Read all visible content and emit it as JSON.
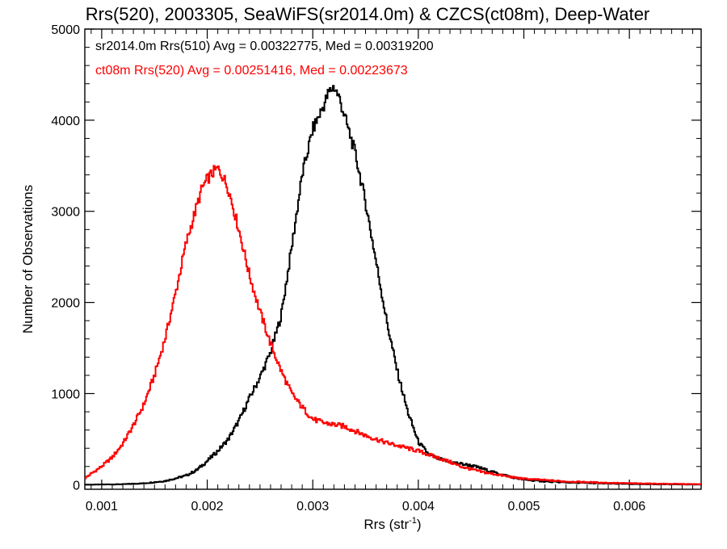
{
  "chart_data": {
    "type": "line",
    "title": "Rrs(520), 2003305, SeaWiFS(sr2014.0m) & CZCS(ct08m), Deep-Water",
    "xlabel": "Rrs (str",
    "xlabel_sup": "-1",
    "xlabel_close": ")",
    "ylabel": "Number of Observations",
    "xlim": [
      0.00084,
      0.00668
    ],
    "ylim": [
      -50,
      5000
    ],
    "xticks": [
      0.001,
      0.002,
      0.003,
      0.004,
      0.005,
      0.006
    ],
    "xtick_labels": [
      "0.001",
      "0.002",
      "0.003",
      "0.004",
      "0.005",
      "0.006"
    ],
    "yticks": [
      0,
      1000,
      2000,
      3000,
      4000,
      5000
    ],
    "ytick_labels": [
      "0",
      "1000",
      "2000",
      "3000",
      "4000",
      "5000"
    ],
    "grid": false,
    "legend_position": "top-left",
    "series": [
      {
        "label_text": "sr2014.0m Rrs(510) Avg = 0.00322775, Med = 0.00319200",
        "color": "#000000",
        "x": [
          0.00084,
          0.0012,
          0.0014,
          0.0016,
          0.0017,
          0.0018,
          0.0019,
          0.002,
          0.0021,
          0.0022,
          0.0023,
          0.0024,
          0.0025,
          0.0026,
          0.0027,
          0.0028,
          0.0029,
          0.003,
          0.0031,
          0.00315,
          0.0032,
          0.00325,
          0.0033,
          0.0034,
          0.0035,
          0.0036,
          0.0037,
          0.0038,
          0.0039,
          0.004,
          0.0041,
          0.0042,
          0.0043,
          0.0044,
          0.0045,
          0.0046,
          0.0047,
          0.0048,
          0.0049,
          0.005,
          0.0052,
          0.0054,
          0.0056,
          0.0058,
          0.006,
          0.0063,
          0.00668
        ],
        "y": [
          0,
          5,
          15,
          40,
          70,
          100,
          160,
          260,
          370,
          500,
          700,
          950,
          1180,
          1450,
          1850,
          2600,
          3400,
          3900,
          4150,
          4300,
          4370,
          4250,
          4050,
          3650,
          3100,
          2450,
          1800,
          1250,
          800,
          470,
          330,
          280,
          250,
          230,
          210,
          180,
          140,
          110,
          80,
          55,
          35,
          25,
          18,
          12,
          8,
          5,
          2
        ]
      },
      {
        "label_text": "ct08m Rrs(520) Avg = 0.00251416, Med = 0.00223673",
        "color": "#ff0000",
        "x": [
          0.00084,
          0.0009,
          0.001,
          0.0011,
          0.0012,
          0.0013,
          0.0014,
          0.0015,
          0.0016,
          0.0017,
          0.0018,
          0.0019,
          0.00195,
          0.002,
          0.00205,
          0.0021,
          0.00215,
          0.0022,
          0.0023,
          0.0024,
          0.0025,
          0.0026,
          0.0027,
          0.0028,
          0.0029,
          0.003,
          0.0031,
          0.0032,
          0.0033,
          0.0034,
          0.0035,
          0.0036,
          0.0037,
          0.0038,
          0.0039,
          0.004,
          0.0041,
          0.0042,
          0.0043,
          0.0044,
          0.0045,
          0.0046,
          0.0047,
          0.0048,
          0.0049,
          0.005,
          0.0052,
          0.0054,
          0.0056,
          0.0058,
          0.006,
          0.0063,
          0.00668
        ],
        "y": [
          70,
          120,
          200,
          300,
          450,
          650,
          880,
          1200,
          1600,
          2100,
          2650,
          3050,
          3250,
          3350,
          3420,
          3470,
          3380,
          3250,
          2800,
          2300,
          1900,
          1550,
          1250,
          1000,
          850,
          720,
          680,
          660,
          640,
          590,
          540,
          500,
          460,
          430,
          400,
          370,
          330,
          290,
          250,
          200,
          170,
          140,
          120,
          100,
          80,
          65,
          50,
          35,
          28,
          20,
          15,
          10,
          5
        ]
      }
    ]
  }
}
